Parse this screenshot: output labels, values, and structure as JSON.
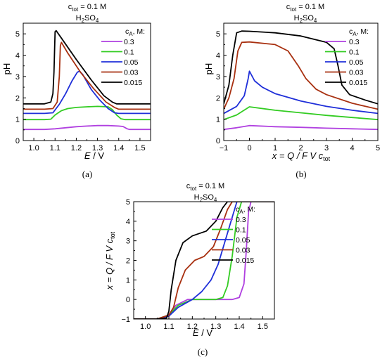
{
  "chart_data": [
    {
      "panel": "(a)",
      "type": "line",
      "title_line1_main": "c",
      "title_line1_sub": "tot",
      "title_line1_rest": " = 0.1 M",
      "title_line2_main": "H",
      "title_line2_sub1": "2",
      "title_line2_mid": "SO",
      "title_line2_sub2": "4",
      "xlabel_main": "E",
      "xlabel_rest": " / V",
      "ylabel": "pH",
      "xlim": [
        0.95,
        1.55
      ],
      "ylim": [
        0,
        5.5
      ],
      "xticks": [
        1.0,
        1.1,
        1.2,
        1.3,
        1.4,
        1.5
      ],
      "xtick_labels": [
        "1.0",
        "1.1",
        "1.2",
        "1.3",
        "1.4",
        "1.5"
      ],
      "yticks": [
        0,
        1,
        2,
        3,
        4,
        5
      ],
      "ytick_labels": [
        "0",
        "1",
        "2",
        "3",
        "4",
        "5"
      ],
      "legend_title_main": "c",
      "legend_title_sub": "A",
      "legend_title_rest": ", M:",
      "legend_position": "right",
      "series": [
        {
          "name": "0.3",
          "color": "#b040e0",
          "points": [
            [
              0.95,
              0.52
            ],
            [
              1.05,
              0.52
            ],
            [
              1.1,
              0.55
            ],
            [
              1.15,
              0.6
            ],
            [
              1.2,
              0.65
            ],
            [
              1.25,
              0.68
            ],
            [
              1.3,
              0.7
            ],
            [
              1.35,
              0.7
            ],
            [
              1.4,
              0.68
            ],
            [
              1.42,
              0.66
            ],
            [
              1.44,
              0.55
            ],
            [
              1.45,
              0.52
            ],
            [
              1.55,
              0.52
            ]
          ]
        },
        {
          "name": "0.1",
          "color": "#33cc22",
          "points": [
            [
              0.95,
              0.98
            ],
            [
              1.05,
              0.98
            ],
            [
              1.08,
              1.0
            ],
            [
              1.1,
              1.2
            ],
            [
              1.13,
              1.4
            ],
            [
              1.16,
              1.5
            ],
            [
              1.2,
              1.55
            ],
            [
              1.25,
              1.58
            ],
            [
              1.3,
              1.6
            ],
            [
              1.35,
              1.58
            ],
            [
              1.37,
              1.45
            ],
            [
              1.39,
              1.2
            ],
            [
              1.41,
              1.02
            ],
            [
              1.43,
              0.98
            ],
            [
              1.55,
              0.98
            ]
          ]
        },
        {
          "name": "0.05",
          "color": "#1f2fd9",
          "points": [
            [
              0.95,
              1.27
            ],
            [
              1.05,
              1.27
            ],
            [
              1.09,
              1.3
            ],
            [
              1.12,
              1.7
            ],
            [
              1.15,
              2.2
            ],
            [
              1.18,
              2.8
            ],
            [
              1.205,
              3.2
            ],
            [
              1.215,
              3.25
            ],
            [
              1.23,
              3.1
            ],
            [
              1.27,
              2.4
            ],
            [
              1.31,
              1.9
            ],
            [
              1.35,
              1.5
            ],
            [
              1.38,
              1.3
            ],
            [
              1.4,
              1.27
            ],
            [
              1.55,
              1.27
            ]
          ]
        },
        {
          "name": "0.03",
          "color": "#a83010",
          "points": [
            [
              0.95,
              1.47
            ],
            [
              1.05,
              1.47
            ],
            [
              1.09,
              1.5
            ],
            [
              1.11,
              1.8
            ],
            [
              1.12,
              3.0
            ],
            [
              1.125,
              4.45
            ],
            [
              1.13,
              4.6
            ],
            [
              1.16,
              4.1
            ],
            [
              1.22,
              3.2
            ],
            [
              1.28,
              2.45
            ],
            [
              1.34,
              1.8
            ],
            [
              1.38,
              1.55
            ],
            [
              1.4,
              1.47
            ],
            [
              1.55,
              1.47
            ]
          ]
        },
        {
          "name": "0.015",
          "color": "#000000",
          "points": [
            [
              0.95,
              1.72
            ],
            [
              1.05,
              1.72
            ],
            [
              1.08,
              1.8
            ],
            [
              1.09,
              2.2
            ],
            [
              1.095,
              3.2
            ],
            [
              1.1,
              5.1
            ],
            [
              1.105,
              5.15
            ],
            [
              1.13,
              4.8
            ],
            [
              1.2,
              3.8
            ],
            [
              1.27,
              2.85
            ],
            [
              1.33,
              2.1
            ],
            [
              1.37,
              1.8
            ],
            [
              1.39,
              1.72
            ],
            [
              1.55,
              1.72
            ]
          ]
        }
      ]
    },
    {
      "panel": "(b)",
      "type": "line",
      "title_line1_main": "c",
      "title_line1_sub": "tot",
      "title_line1_rest": " = 0.1 M",
      "title_line2_main": "H",
      "title_line2_sub1": "2",
      "title_line2_mid": "SO",
      "title_line2_sub2": "4",
      "xlabel_main": "x = Q / F V c",
      "xlabel_sub": "tot",
      "ylabel": "pH",
      "xlim": [
        -1,
        5
      ],
      "ylim": [
        0,
        5.5
      ],
      "xticks": [
        -1,
        0,
        1,
        2,
        3,
        4,
        5
      ],
      "xtick_labels": [
        "−1",
        "0",
        "1",
        "2",
        "3",
        "4",
        "5"
      ],
      "yticks": [
        0,
        1,
        2,
        3,
        4,
        5
      ],
      "ytick_labels": [
        "0",
        "1",
        "2",
        "3",
        "4",
        "5"
      ],
      "legend_title_main": "c",
      "legend_title_sub": "A",
      "legend_title_rest": ", M:",
      "legend_position": "top-right",
      "series": [
        {
          "name": "0.3",
          "color": "#b040e0",
          "points": [
            [
              -1,
              0.52
            ],
            [
              -0.5,
              0.6
            ],
            [
              0,
              0.7
            ],
            [
              1,
              0.65
            ],
            [
              2,
              0.62
            ],
            [
              3,
              0.58
            ],
            [
              4,
              0.55
            ],
            [
              5,
              0.52
            ]
          ]
        },
        {
          "name": "0.1",
          "color": "#33cc22",
          "points": [
            [
              -1,
              0.98
            ],
            [
              -0.5,
              1.2
            ],
            [
              0,
              1.58
            ],
            [
              1,
              1.42
            ],
            [
              2,
              1.3
            ],
            [
              3,
              1.18
            ],
            [
              4,
              1.08
            ],
            [
              5,
              0.98
            ]
          ]
        },
        {
          "name": "0.05",
          "color": "#1f2fd9",
          "points": [
            [
              -1,
              1.27
            ],
            [
              -0.5,
              1.6
            ],
            [
              -0.2,
              2.1
            ],
            [
              -0.05,
              2.9
            ],
            [
              0,
              3.25
            ],
            [
              0.2,
              2.8
            ],
            [
              0.5,
              2.5
            ],
            [
              1,
              2.2
            ],
            [
              2,
              1.85
            ],
            [
              3,
              1.6
            ],
            [
              4,
              1.42
            ],
            [
              5,
              1.27
            ]
          ]
        },
        {
          "name": "0.03",
          "color": "#a83010",
          "points": [
            [
              -1,
              1.47
            ],
            [
              -0.8,
              2.0
            ],
            [
              -0.6,
              2.9
            ],
            [
              -0.45,
              4.2
            ],
            [
              -0.3,
              4.6
            ],
            [
              0,
              4.62
            ],
            [
              1,
              4.5
            ],
            [
              1.5,
              4.2
            ],
            [
              1.9,
              3.5
            ],
            [
              2.2,
              2.9
            ],
            [
              2.6,
              2.4
            ],
            [
              3,
              2.15
            ],
            [
              4,
              1.75
            ],
            [
              5,
              1.47
            ]
          ]
        },
        {
          "name": "0.015",
          "color": "#000000",
          "points": [
            [
              -1,
              1.72
            ],
            [
              -0.8,
              2.6
            ],
            [
              -0.65,
              4.0
            ],
            [
              -0.5,
              5.05
            ],
            [
              -0.3,
              5.13
            ],
            [
              0,
              5.12
            ],
            [
              1,
              5.05
            ],
            [
              2,
              4.9
            ],
            [
              3,
              4.6
            ],
            [
              3.3,
              4.3
            ],
            [
              3.45,
              3.5
            ],
            [
              3.6,
              2.6
            ],
            [
              3.9,
              2.15
            ],
            [
              4.5,
              1.9
            ],
            [
              5,
              1.72
            ]
          ]
        }
      ]
    },
    {
      "panel": "(c)",
      "type": "line",
      "title_line1_main": "c",
      "title_line1_sub": "tot",
      "title_line1_rest": " = 0.1 M",
      "title_line2_main": "H",
      "title_line2_sub1": "2",
      "title_line2_mid": "SO",
      "title_line2_sub2": "4",
      "xlabel_main": "E",
      "xlabel_rest": " / V",
      "ylabel_main": "x = Q / F V c",
      "ylabel_sub": "tot",
      "xlim": [
        0.95,
        1.55
      ],
      "ylim": [
        -1,
        5
      ],
      "xticks": [
        1.0,
        1.1,
        1.2,
        1.3,
        1.4,
        1.5
      ],
      "xtick_labels": [
        "1.0",
        "1.1",
        "1.2",
        "1.3",
        "1.4",
        "1.5"
      ],
      "yticks": [
        -1,
        0,
        1,
        2,
        3,
        4,
        5
      ],
      "ytick_labels": [
        "−1",
        "0",
        "1",
        "2",
        "3",
        "4",
        "5"
      ],
      "legend_title_main": "c",
      "legend_title_sub": "A",
      "legend_title_rest": ", M:",
      "legend_position": "top-right",
      "series": [
        {
          "name": "0.3",
          "color": "#b040e0",
          "points": [
            [
              0.95,
              -1
            ],
            [
              1.05,
              -1
            ],
            [
              1.1,
              -0.8
            ],
            [
              1.13,
              -0.3
            ],
            [
              1.18,
              0
            ],
            [
              1.37,
              0
            ],
            [
              1.4,
              0.1
            ],
            [
              1.42,
              0.8
            ],
            [
              1.43,
              2.5
            ],
            [
              1.44,
              4.5
            ],
            [
              1.45,
              5
            ],
            [
              1.55,
              5
            ]
          ]
        },
        {
          "name": "0.1",
          "color": "#33cc22",
          "points": [
            [
              0.95,
              -1
            ],
            [
              1.05,
              -1
            ],
            [
              1.1,
              -0.8
            ],
            [
              1.14,
              -0.3
            ],
            [
              1.2,
              0
            ],
            [
              1.3,
              0
            ],
            [
              1.33,
              0.1
            ],
            [
              1.35,
              0.7
            ],
            [
              1.37,
              2.2
            ],
            [
              1.39,
              4.2
            ],
            [
              1.41,
              5
            ],
            [
              1.55,
              5
            ]
          ]
        },
        {
          "name": "0.05",
          "color": "#1f2fd9",
          "points": [
            [
              0.95,
              -1
            ],
            [
              1.05,
              -1
            ],
            [
              1.1,
              -0.85
            ],
            [
              1.14,
              -0.4
            ],
            [
              1.2,
              0
            ],
            [
              1.24,
              0.4
            ],
            [
              1.28,
              1.0
            ],
            [
              1.31,
              1.8
            ],
            [
              1.34,
              3.0
            ],
            [
              1.37,
              4.2
            ],
            [
              1.39,
              5
            ],
            [
              1.55,
              5
            ]
          ]
        },
        {
          "name": "0.03",
          "color": "#a83010",
          "points": [
            [
              0.95,
              -1
            ],
            [
              1.05,
              -1
            ],
            [
              1.1,
              -0.8
            ],
            [
              1.12,
              -0.4
            ],
            [
              1.14,
              0.6
            ],
            [
              1.17,
              1.5
            ],
            [
              1.21,
              2.0
            ],
            [
              1.25,
              2.2
            ],
            [
              1.29,
              2.7
            ],
            [
              1.32,
              3.6
            ],
            [
              1.35,
              4.6
            ],
            [
              1.37,
              5
            ],
            [
              1.55,
              5
            ]
          ]
        },
        {
          "name": "0.015",
          "color": "#000000",
          "points": [
            [
              0.95,
              -1
            ],
            [
              1.05,
              -1
            ],
            [
              1.09,
              -0.95
            ],
            [
              1.1,
              -0.6
            ],
            [
              1.11,
              0.5
            ],
            [
              1.13,
              2.0
            ],
            [
              1.16,
              2.9
            ],
            [
              1.2,
              3.25
            ],
            [
              1.26,
              3.5
            ],
            [
              1.3,
              4.0
            ],
            [
              1.33,
              4.7
            ],
            [
              1.35,
              5
            ],
            [
              1.55,
              5
            ]
          ]
        }
      ]
    }
  ]
}
